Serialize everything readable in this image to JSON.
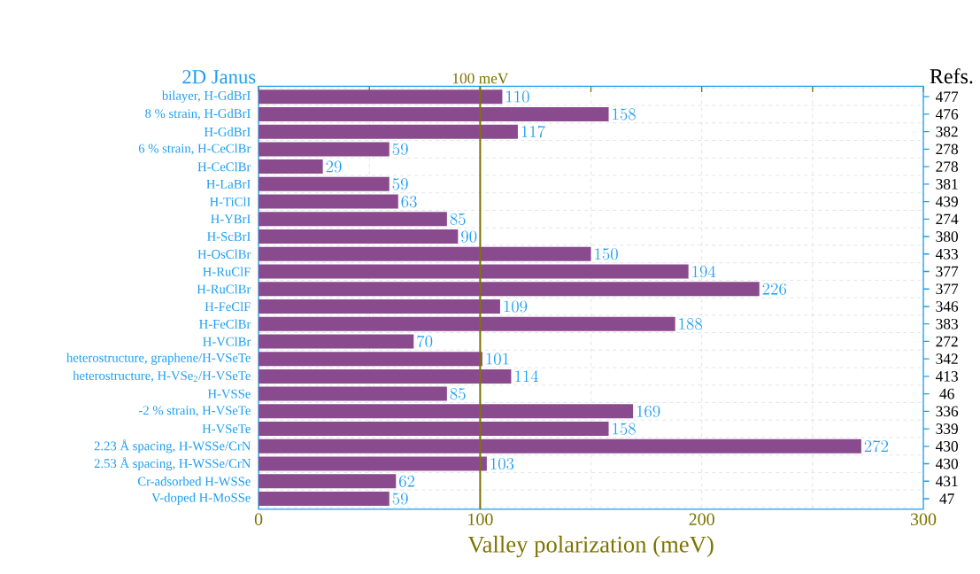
{
  "chart_data": {
    "type": "bar",
    "orientation": "horizontal",
    "categories": [
      "bilayer, H-GdBrI",
      "8 % strain, H-GdBrI",
      "H-GdBrI",
      "6 % strain, H-CeClBr",
      "H-CeClBr",
      "H-LaBrI",
      "H-TiClI",
      "H-YBrI",
      "H-ScBrI",
      "H-OsClBr",
      "H-RuClF",
      "H-RuClBr",
      "H-FeClF",
      "H-FeClBr",
      "H-VClBr",
      "heterostructure, graphene/H-VSeTe",
      "heterostructure, H-VSe$_{2}$/H-VSeTe",
      "H-VSSe",
      "-2 % strain, H-VSeTe",
      "H-VSeTe",
      "2.23 Å spacing, H-WSSe/CrN",
      "2.53 Å spacing, H-WSSe/CrN",
      "Cr-adsorbed H-WSSe",
      "V-doped H-MoSSe"
    ],
    "values": [
      110,
      158,
      117,
      59,
      29,
      59,
      63,
      85,
      90,
      150,
      194,
      226,
      109,
      188,
      70,
      101,
      114,
      85,
      169,
      158,
      272,
      103,
      62,
      59
    ],
    "color": "#8a4a8e",
    "data_labels": true,
    "xlabel": "Valley polarization (meV)",
    "xlim": [
      0,
      300
    ],
    "xticks": [
      0,
      {
        "value": 50,
        "label": null
      },
      100,
      {
        "value": 150,
        "label": null
      },
      200,
      {
        "value": 250,
        "label": null
      },
      300
    ],
    "grid": true,
    "ref_lines": [
      {
        "axis": "x",
        "value": 100,
        "label": "100 meV",
        "color": "#7d7400"
      }
    ],
    "annotations": [
      "2D Janus",
      "Refs.",
      "477",
      "476",
      "382",
      "278",
      "278",
      "381",
      "439",
      "274",
      "380",
      "433",
      "377",
      "377",
      "346",
      "383",
      "272",
      "342",
      "413",
      "46",
      "336",
      "339",
      "430",
      "430",
      "431",
      "47"
    ]
  }
}
